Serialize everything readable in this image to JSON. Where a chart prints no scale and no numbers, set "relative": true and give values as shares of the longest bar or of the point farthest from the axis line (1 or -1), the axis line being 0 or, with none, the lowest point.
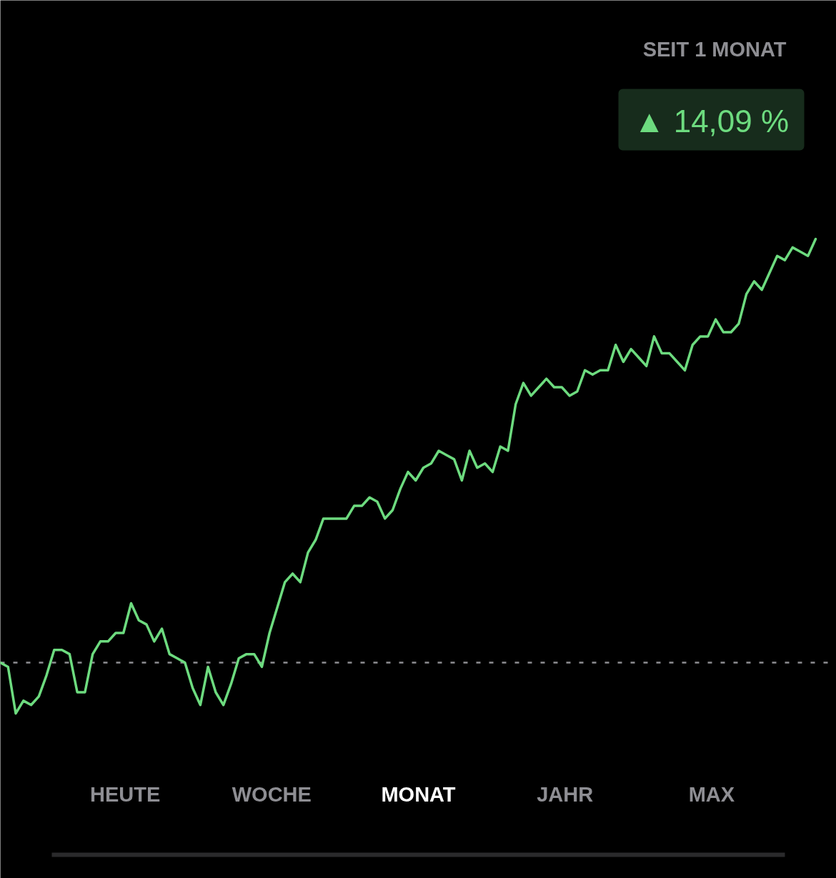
{
  "chart_data": {
    "type": "line",
    "relative": true,
    "categories": [
      null,
      null,
      null,
      null,
      null,
      null,
      null,
      null,
      null,
      null,
      null,
      null,
      null,
      null,
      null,
      null,
      null,
      null,
      null,
      null,
      null,
      null,
      null,
      null,
      null,
      null,
      null,
      null,
      null,
      null,
      null,
      null,
      null,
      null,
      null,
      null,
      null,
      null,
      null,
      null,
      null,
      null,
      null,
      null,
      null,
      null,
      null,
      null,
      null,
      null,
      null,
      null,
      null,
      null,
      null,
      null,
      null,
      null,
      null,
      null,
      null,
      null,
      null,
      null,
      null,
      null,
      null,
      null,
      null,
      null,
      null,
      null,
      null,
      null,
      null,
      null,
      null,
      null,
      null,
      null,
      null,
      null,
      null,
      null,
      null,
      null,
      null,
      null,
      null,
      null,
      null,
      null,
      null,
      null,
      null,
      null,
      null,
      null,
      null,
      null,
      null,
      null,
      null,
      null,
      null,
      null,
      null
    ],
    "values": [
      0,
      -0.01,
      -0.12,
      -0.09,
      -0.1,
      -0.08,
      -0.03,
      0.03,
      0.03,
      0.02,
      -0.07,
      -0.07,
      0.02,
      0.05,
      0.05,
      0.07,
      0.07,
      0.14,
      0.1,
      0.09,
      0.05,
      0.08,
      0.02,
      0.01,
      0,
      -0.06,
      -0.1,
      -0.01,
      -0.07,
      -0.1,
      -0.05,
      0.01,
      0.02,
      0.02,
      -0.01,
      0.07,
      0.13,
      0.19,
      0.21,
      0.19,
      0.26,
      0.29,
      0.34,
      0.34,
      0.34,
      0.34,
      0.37,
      0.37,
      0.39,
      0.38,
      0.34,
      0.36,
      0.41,
      0.45,
      0.43,
      0.46,
      0.47,
      0.5,
      0.49,
      0.48,
      0.43,
      0.5,
      0.46,
      0.47,
      0.45,
      0.51,
      0.5,
      0.61,
      0.66,
      0.63,
      0.65,
      0.67,
      0.65,
      0.65,
      0.63,
      0.64,
      0.69,
      0.68,
      0.69,
      0.69,
      0.75,
      0.71,
      0.74,
      0.72,
      0.7,
      0.77,
      0.73,
      0.73,
      0.71,
      0.69,
      0.75,
      0.77,
      0.77,
      0.81,
      0.78,
      0.78,
      0.8,
      0.87,
      0.9,
      0.88,
      0.92,
      0.96,
      0.95,
      0.98,
      0.97,
      0.96,
      1
    ],
    "color": "#6ddb7f",
    "ref_lines": [
      {
        "axis": "y",
        "value": 0,
        "color": "#8e8e93",
        "line_style": "dotted"
      }
    ],
    "annotations": [
      "SEIT 1 MONAT",
      "▲ 14,09 %",
      "HEUTE",
      "WOCHE",
      "MONAT",
      "JAHR",
      "MAX"
    ],
    "grid": false,
    "tick_labels": false
  }
}
